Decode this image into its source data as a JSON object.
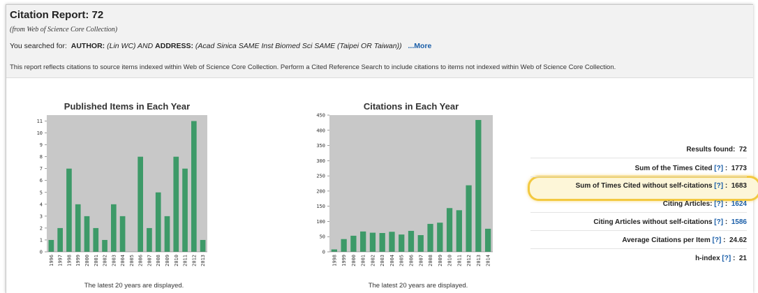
{
  "header": {
    "title": "Citation Report: 72",
    "subtitle": "(from Web of Science Core Collection)",
    "searched_prefix": "You searched for:",
    "author_label": "AUTHOR:",
    "author_value": "(Lin WC) AND",
    "address_label": "ADDRESS:",
    "address_value": "(Acad Sinica SAME Inst Biomed Sci SAME (Taipei OR Taiwan))",
    "more_link": "...More",
    "note": "This report reflects citations to source items indexed within Web of Science Core Collection. Perform a Cited Reference Search to include citations to items not indexed within Web of Science Core Collection."
  },
  "colors": {
    "bar": "#3d9a68",
    "plot_bg": "#c8c8c8",
    "link": "#1a5ea8",
    "highlight": "#f3c940"
  },
  "chart_data": [
    {
      "type": "bar",
      "title": "Published Items in Each Year",
      "categories": [
        "1996",
        "1997",
        "1998",
        "1999",
        "2000",
        "2001",
        "2002",
        "2003",
        "2004",
        "2005",
        "2006",
        "2007",
        "2008",
        "2009",
        "2010",
        "2011",
        "2012",
        "2013"
      ],
      "values": [
        1,
        2,
        7,
        4,
        3,
        2,
        1,
        4,
        3,
        0,
        8,
        2,
        5,
        3,
        8,
        7,
        11,
        1
      ],
      "ylim": [
        0,
        11.5
      ],
      "yticks": [
        0,
        1,
        2,
        3,
        4,
        5,
        6,
        7,
        8,
        9,
        10,
        11
      ],
      "footer": "The latest 20 years are displayed.",
      "grid": false
    },
    {
      "type": "bar",
      "title": "Citations in Each Year",
      "categories": [
        "1998",
        "1999",
        "2000",
        "2001",
        "2002",
        "2003",
        "2004",
        "2005",
        "2006",
        "2007",
        "2008",
        "2009",
        "2010",
        "2011",
        "2012",
        "2013",
        "2014"
      ],
      "values": [
        8,
        42,
        53,
        67,
        63,
        62,
        66,
        57,
        69,
        55,
        92,
        96,
        144,
        137,
        219,
        434,
        76
      ],
      "ylim": [
        0,
        450
      ],
      "yticks": [
        0,
        50,
        100,
        150,
        200,
        250,
        300,
        350,
        400,
        450
      ],
      "footer": "The latest 20 years are displayed.",
      "grid": false
    }
  ],
  "stats": {
    "results_found": {
      "label": "Results found:",
      "value": "72"
    },
    "sum_times_cited": {
      "label": "Sum of the Times Cited",
      "help": "[?]",
      "value": "1773"
    },
    "sum_without_self": {
      "label": "Sum of Times Cited without self-citations",
      "help": "[?]",
      "value": "1683"
    },
    "citing_articles": {
      "label": "Citing Articles:",
      "help": "[?]",
      "value": "1624"
    },
    "citing_without_self": {
      "label": "Citing Articles without self-citations",
      "help": "[?]",
      "value": "1586"
    },
    "avg_citations": {
      "label": "Average Citations per Item",
      "help": "[?]",
      "value": "24.62"
    },
    "h_index": {
      "label": "h-index",
      "help": "[?]",
      "value": "21"
    }
  }
}
